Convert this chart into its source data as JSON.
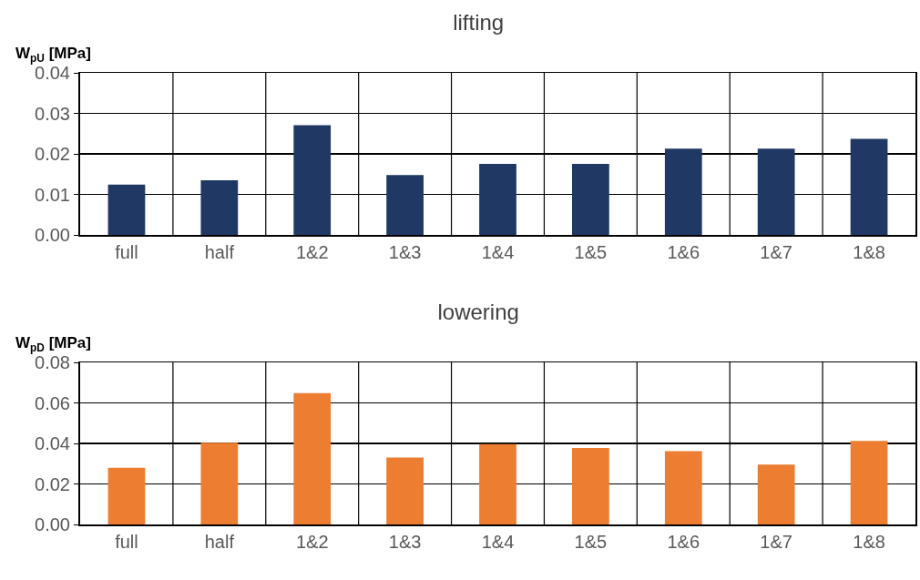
{
  "chart_data": [
    {
      "type": "bar",
      "title": "lifting",
      "ylabel": "W$_{pU}$ [MPa]",
      "categories": [
        "full",
        "half",
        "1&2",
        "1&3",
        "1&4",
        "1&5",
        "1&6",
        "1&7",
        "1&8"
      ],
      "series": [
        {
          "color": "#203864",
          "values": [
            0.0124,
            0.0135,
            0.0271,
            0.0148,
            0.0175,
            0.0175,
            0.0213,
            0.0213,
            0.0237
          ]
        }
      ],
      "ylim": [
        0,
        0.04
      ],
      "yticks": [
        {
          "value": 0,
          "label": "0.00"
        },
        {
          "value": 0.01,
          "label": "0.01"
        },
        {
          "value": 0.02,
          "label": "0.02"
        },
        {
          "value": 0.03,
          "label": "0.03"
        },
        {
          "value": 0.04,
          "label": "0.04"
        }
      ],
      "grid": true
    },
    {
      "type": "bar",
      "title": "lowering",
      "ylabel": "W$_{pD}$ [MPa]",
      "categories": [
        "full",
        "half",
        "1&2",
        "1&3",
        "1&4",
        "1&5",
        "1&6",
        "1&7",
        "1&8"
      ],
      "series": [
        {
          "color": "#ed7d31",
          "values": [
            0.028,
            0.0403,
            0.0648,
            0.033,
            0.0397,
            0.0377,
            0.0362,
            0.0295,
            0.0412
          ]
        }
      ],
      "ylim": [
        0,
        0.08
      ],
      "yticks": [
        {
          "value": 0,
          "label": "0.00"
        },
        {
          "value": 0.02,
          "label": "0.02"
        },
        {
          "value": 0.04,
          "label": "0.04"
        },
        {
          "value": 0.06,
          "label": "0.06"
        },
        {
          "value": 0.08,
          "label": "0.08"
        }
      ],
      "grid": true
    }
  ]
}
